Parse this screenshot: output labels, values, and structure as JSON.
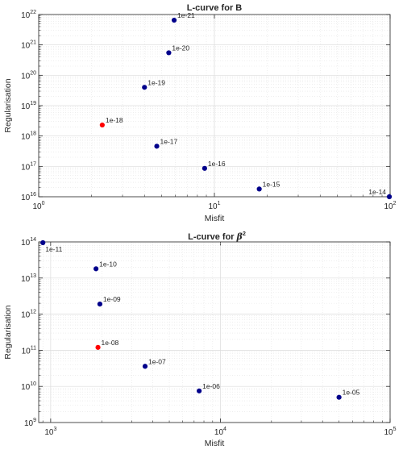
{
  "charts": {
    "top": {
      "title": "L-curve for B",
      "xlabel": "Misfit",
      "ylabel": "Regularisation",
      "x_ticks": [
        {
          "base": "10",
          "exp": "0"
        },
        {
          "base": "10",
          "exp": "1"
        },
        {
          "base": "10",
          "exp": "2"
        }
      ],
      "y_ticks": [
        {
          "base": "10",
          "exp": "16"
        },
        {
          "base": "10",
          "exp": "17"
        },
        {
          "base": "10",
          "exp": "18"
        },
        {
          "base": "10",
          "exp": "19"
        },
        {
          "base": "10",
          "exp": "20"
        },
        {
          "base": "10",
          "exp": "21"
        },
        {
          "base": "10",
          "exp": "22"
        }
      ]
    },
    "bottom": {
      "title_prefix": "L-curve for ",
      "title_symbol": "β",
      "title_exp": "2",
      "xlabel": "Misfit",
      "ylabel": "Regularisation",
      "x_ticks": [
        {
          "base": "10",
          "exp": "3"
        },
        {
          "base": "10",
          "exp": "4"
        },
        {
          "base": "10",
          "exp": "5"
        }
      ],
      "y_ticks": [
        {
          "base": "10",
          "exp": "9"
        },
        {
          "base": "10",
          "exp": "10"
        },
        {
          "base": "10",
          "exp": "11"
        },
        {
          "base": "10",
          "exp": "12"
        },
        {
          "base": "10",
          "exp": "13"
        },
        {
          "base": "10",
          "exp": "14"
        }
      ]
    }
  },
  "chart_data": [
    {
      "type": "scatter",
      "title": "L-curve for B",
      "xlabel": "Misfit",
      "ylabel": "Regularisation",
      "x_scale": "log",
      "y_scale": "log",
      "xlim": [
        1,
        100
      ],
      "ylim": [
        1e+16,
        1e+22
      ],
      "grid": true,
      "colors": {
        "point": "#00008b",
        "highlight": "#ff0000"
      },
      "points": [
        {
          "label": "1e-21",
          "x": 5.9,
          "y": 6.5e+21,
          "highlight": false
        },
        {
          "label": "1e-20",
          "x": 5.5,
          "y": 5.5e+20,
          "highlight": false
        },
        {
          "label": "1e-19",
          "x": 4.0,
          "y": 4e+19,
          "highlight": false
        },
        {
          "label": "1e-18",
          "x": 2.3,
          "y": 2.3e+18,
          "highlight": true
        },
        {
          "label": "1e-17",
          "x": 4.7,
          "y": 4.6e+17,
          "highlight": false
        },
        {
          "label": "1e-16",
          "x": 8.8,
          "y": 8.6e+16,
          "highlight": false
        },
        {
          "label": "1e-15",
          "x": 18.0,
          "y": 1.8e+16,
          "highlight": false
        },
        {
          "label": "1e-14",
          "x": 99.0,
          "y": 1e+16,
          "highlight": false
        }
      ]
    },
    {
      "type": "scatter",
      "title": "L-curve for β²",
      "xlabel": "Misfit",
      "ylabel": "Regularisation",
      "x_scale": "log",
      "y_scale": "log",
      "xlim": [
        850,
        100000
      ],
      "ylim": [
        1000000000.0,
        100000000000000.0
      ],
      "grid": true,
      "colors": {
        "point": "#00008b",
        "highlight": "#ff0000"
      },
      "points": [
        {
          "label": "1e-11",
          "x": 900,
          "y": 95000000000000.0,
          "highlight": false
        },
        {
          "label": "1e-10",
          "x": 1850,
          "y": 18000000000000.0,
          "highlight": false
        },
        {
          "label": "1e-09",
          "x": 1950,
          "y": 1900000000000.0,
          "highlight": false
        },
        {
          "label": "1e-08",
          "x": 1900,
          "y": 120000000000.0,
          "highlight": true
        },
        {
          "label": "1e-07",
          "x": 3600,
          "y": 36000000000.0,
          "highlight": false
        },
        {
          "label": "1e-06",
          "x": 7500,
          "y": 7500000000.0,
          "highlight": false
        },
        {
          "label": "1e-05",
          "x": 50000,
          "y": 5000000000.0,
          "highlight": false
        }
      ]
    }
  ]
}
